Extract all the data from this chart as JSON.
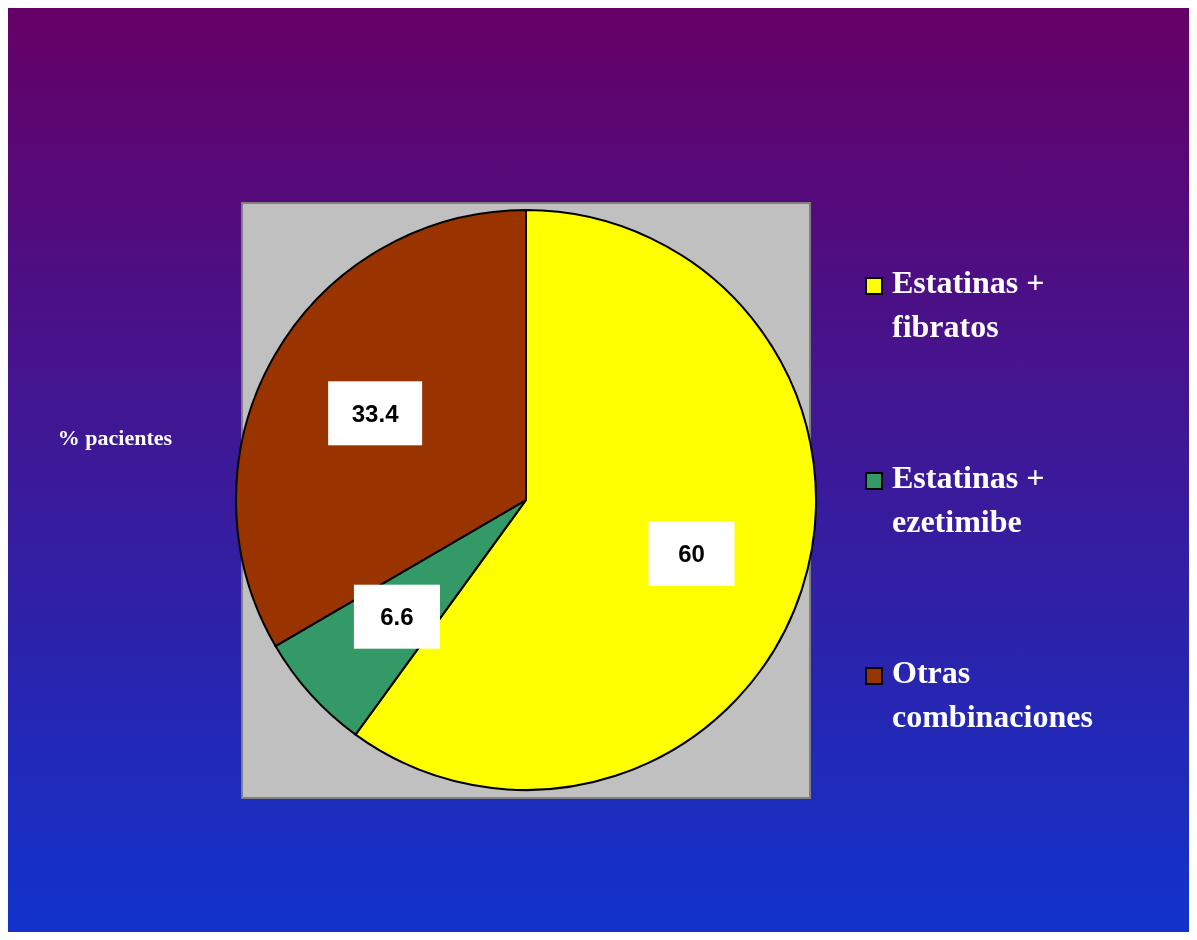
{
  "chart_data": {
    "type": "pie",
    "ylabel": "% pacientes",
    "categories": [
      "Estatinas + fibratos",
      "Estatinas + ezetimibe",
      "Otras combinaciones"
    ],
    "values": [
      60,
      6.6,
      33.4
    ],
    "colors": [
      "#ffff00",
      "#339966",
      "#993300"
    ],
    "data_labels": true,
    "legend": "right"
  }
}
